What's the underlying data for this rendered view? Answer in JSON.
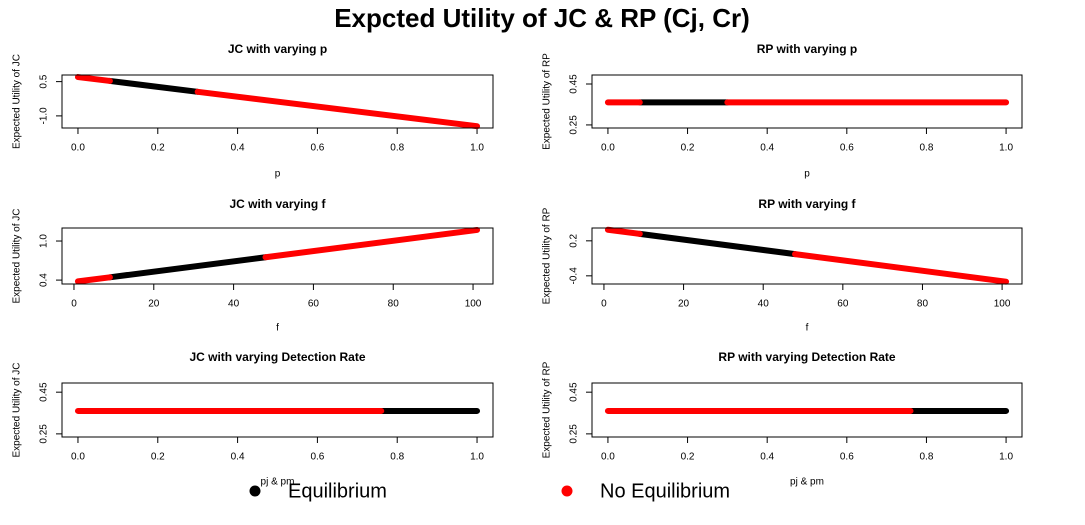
{
  "title": "Expcted Utility of JC & RP (Cj, Cr)",
  "chart_data": [
    {
      "type": "line",
      "title": "JC with varying p",
      "x_label": "p",
      "y_label": "Expected Utility of JC",
      "x": [
        0,
        0.08,
        0.08,
        0.3,
        0.3,
        1
      ],
      "series": [
        {
          "name": "Equilibrium",
          "color": "#000000",
          "values": [
            null,
            null,
            0.53,
            0.055,
            null,
            null
          ]
        },
        {
          "name": "No Equilibrium",
          "color": "#ff0000",
          "values": [
            0.7,
            0.53,
            null,
            null,
            0.055,
            -1.45
          ]
        }
      ],
      "xlim": [
        -0.04,
        1.04
      ],
      "ylim": [
        -1.53,
        0.79
      ],
      "xticks": [
        {
          "value": 0,
          "label": "0.0"
        },
        0.2,
        0.4,
        0.6,
        0.8,
        {
          "value": 1,
          "label": "1.0"
        }
      ],
      "yticks": [
        {
          "value": -1,
          "label": "-1.0"
        },
        0.5
      ]
    },
    {
      "type": "line",
      "title": "RP with varying p",
      "x_label": "p",
      "y_label": "Expected Utility of RP",
      "x": [
        0,
        0.08,
        0.08,
        0.3,
        0.3,
        1
      ],
      "series": [
        {
          "name": "Equilibrium",
          "color": "#000000",
          "values": [
            null,
            null,
            0.36,
            0.36,
            null,
            null
          ]
        },
        {
          "name": "No Equilibrium",
          "color": "#ff0000",
          "values": [
            0.36,
            0.36,
            null,
            null,
            0.36,
            0.36
          ]
        }
      ],
      "xlim": [
        -0.04,
        1.04
      ],
      "ylim": [
        0.235,
        0.494
      ],
      "xticks": [
        {
          "value": 0,
          "label": "0.0"
        },
        0.2,
        0.4,
        0.6,
        0.8,
        {
          "value": 1,
          "label": "1.0"
        }
      ],
      "yticks": [
        0.25,
        0.45
      ]
    },
    {
      "type": "line",
      "title": "JC with varying f",
      "x_label": "f",
      "y_label": "Expected Utility of JC",
      "x": [
        1,
        9,
        9,
        48,
        48,
        101
      ],
      "series": [
        {
          "name": "Equilibrium",
          "color": "#000000",
          "values": [
            null,
            null,
            0.443,
            0.751,
            null,
            null
          ]
        },
        {
          "name": "No Equilibrium",
          "color": "#ff0000",
          "values": [
            0.38,
            0.443,
            null,
            null,
            0.751,
            1.17
          ]
        }
      ],
      "xlim": [
        -3,
        105
      ],
      "ylim": [
        0.34,
        1.2
      ],
      "xticks": [
        0,
        20,
        40,
        60,
        80,
        100
      ],
      "yticks": [
        0.4,
        {
          "value": 1,
          "label": "1.0"
        }
      ]
    },
    {
      "type": "line",
      "title": "RP with varying f",
      "x_label": "f",
      "y_label": "Expected Utility of RP",
      "x": [
        1,
        9,
        9,
        48,
        48,
        101
      ],
      "series": [
        {
          "name": "Equilibrium",
          "color": "#000000",
          "values": [
            null,
            null,
            0.319,
            -0.028,
            null,
            null
          ]
        },
        {
          "name": "No Equilibrium",
          "color": "#ff0000",
          "values": [
            0.39,
            0.319,
            null,
            null,
            -0.028,
            -0.5
          ]
        }
      ],
      "xlim": [
        -3,
        105
      ],
      "ylim": [
        -0.54,
        0.42
      ],
      "xticks": [
        0,
        20,
        40,
        60,
        80,
        100
      ],
      "yticks": [
        -0.4,
        0.2
      ]
    },
    {
      "type": "line",
      "title": "JC with varying Detection Rate",
      "x_label": "pj & pm",
      "y_label": "Expected Utility of JC",
      "x": [
        0,
        0.76,
        0.76,
        1
      ],
      "series": [
        {
          "name": "Equilibrium",
          "color": "#000000",
          "values": [
            null,
            null,
            0.36,
            0.36
          ]
        },
        {
          "name": "No Equilibrium",
          "color": "#ff0000",
          "values": [
            0.36,
            0.36,
            null,
            null
          ]
        }
      ],
      "xlim": [
        -0.04,
        1.04
      ],
      "ylim": [
        0.235,
        0.494
      ],
      "xticks": [
        {
          "value": 0,
          "label": "0.0"
        },
        0.2,
        0.4,
        0.6,
        0.8,
        {
          "value": 1,
          "label": "1.0"
        }
      ],
      "yticks": [
        0.25,
        0.45
      ]
    },
    {
      "type": "line",
      "title": "RP with varying Detection Rate",
      "x_label": "pj & pm",
      "y_label": "Expected Utility of RP",
      "x": [
        0,
        0.76,
        0.76,
        1
      ],
      "series": [
        {
          "name": "Equilibrium",
          "color": "#000000",
          "values": [
            null,
            null,
            0.36,
            0.36
          ]
        },
        {
          "name": "No Equilibrium",
          "color": "#ff0000",
          "values": [
            0.36,
            0.36,
            null,
            null
          ]
        }
      ],
      "xlim": [
        -0.04,
        1.04
      ],
      "ylim": [
        0.235,
        0.494
      ],
      "xticks": [
        {
          "value": 0,
          "label": "0.0"
        },
        0.2,
        0.4,
        0.6,
        0.8,
        {
          "value": 1,
          "label": "1.0"
        }
      ],
      "yticks": [
        0.25,
        0.45
      ]
    }
  ]
}
